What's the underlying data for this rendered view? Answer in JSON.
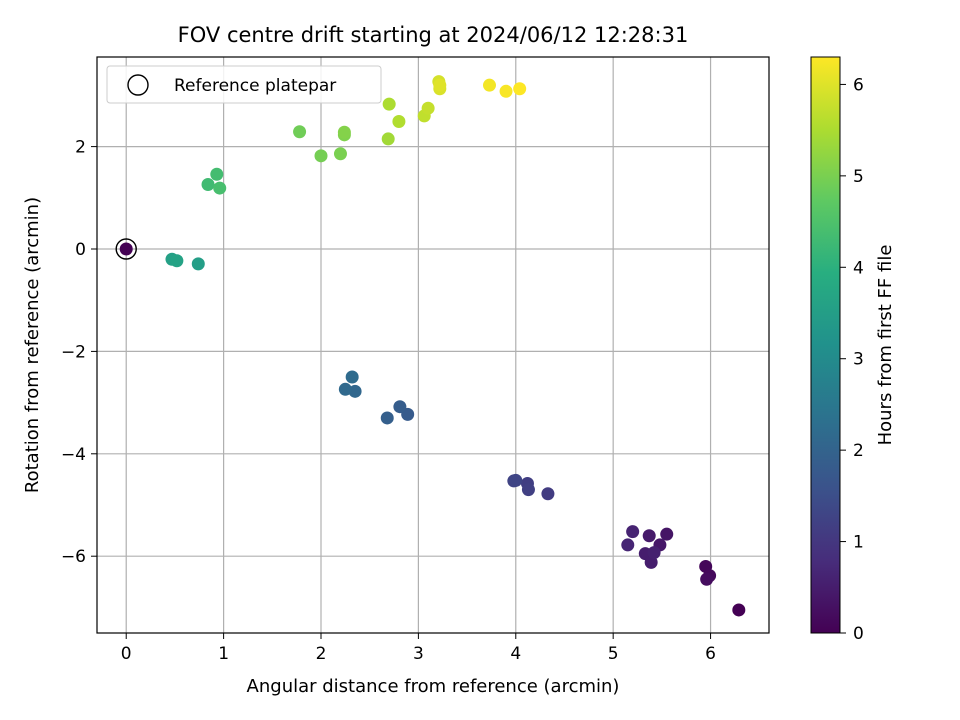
{
  "chart_data": {
    "type": "scatter",
    "title": "FOV centre drift starting at 2024/06/12 12:28:31",
    "xlabel": "Angular distance from reference (arcmin)",
    "ylabel": "Rotation from reference (arcmin)",
    "colorbar_label": "Hours from first FF file",
    "xlim": [
      -0.3,
      6.6
    ],
    "ylim": [
      -7.5,
      3.75
    ],
    "clim": [
      0,
      6.3
    ],
    "xticks": [
      0,
      1,
      2,
      3,
      4,
      5,
      6
    ],
    "yticks": [
      -6,
      -4,
      -2,
      0,
      2
    ],
    "colorbar_ticks": [
      0,
      1,
      2,
      3,
      4,
      5,
      6
    ],
    "grid": true,
    "legend": {
      "placement": "top-left",
      "entries": [
        "Reference platepar"
      ]
    },
    "reference_point": {
      "x": 0,
      "y": 0
    },
    "colormap": "viridis",
    "points": [
      {
        "x": 0.0,
        "y": 0.0,
        "t": 0.0
      },
      {
        "x": 6.29,
        "y": -7.05,
        "t": 0.0
      },
      {
        "x": 5.95,
        "y": -6.2,
        "t": 0.1
      },
      {
        "x": 5.99,
        "y": -6.38,
        "t": 0.15
      },
      {
        "x": 5.96,
        "y": -6.45,
        "t": 0.2
      },
      {
        "x": 5.55,
        "y": -5.57,
        "t": 0.35
      },
      {
        "x": 5.48,
        "y": -5.78,
        "t": 0.4
      },
      {
        "x": 5.37,
        "y": -5.6,
        "t": 0.45
      },
      {
        "x": 5.33,
        "y": -5.95,
        "t": 0.5
      },
      {
        "x": 5.39,
        "y": -6.12,
        "t": 0.5
      },
      {
        "x": 5.42,
        "y": -5.93,
        "t": 0.55
      },
      {
        "x": 5.2,
        "y": -5.52,
        "t": 0.6
      },
      {
        "x": 5.15,
        "y": -5.78,
        "t": 0.65
      },
      {
        "x": 4.33,
        "y": -4.78,
        "t": 1.1
      },
      {
        "x": 4.12,
        "y": -4.58,
        "t": 1.15
      },
      {
        "x": 4.13,
        "y": -4.7,
        "t": 1.2
      },
      {
        "x": 3.98,
        "y": -4.53,
        "t": 1.25
      },
      {
        "x": 4.0,
        "y": -4.52,
        "t": 1.3
      },
      {
        "x": 2.89,
        "y": -3.23,
        "t": 1.8
      },
      {
        "x": 2.81,
        "y": -3.08,
        "t": 1.85
      },
      {
        "x": 2.68,
        "y": -3.3,
        "t": 1.9
      },
      {
        "x": 2.35,
        "y": -2.78,
        "t": 2.1
      },
      {
        "x": 2.25,
        "y": -2.74,
        "t": 2.15
      },
      {
        "x": 2.32,
        "y": -2.5,
        "t": 2.2
      },
      {
        "x": 0.74,
        "y": -0.29,
        "t": 3.5
      },
      {
        "x": 0.47,
        "y": -0.2,
        "t": 3.55
      },
      {
        "x": 0.52,
        "y": -0.23,
        "t": 3.6
      },
      {
        "x": 0.84,
        "y": 1.26,
        "t": 4.3
      },
      {
        "x": 0.93,
        "y": 1.46,
        "t": 4.35
      },
      {
        "x": 0.96,
        "y": 1.19,
        "t": 4.4
      },
      {
        "x": 1.78,
        "y": 2.29,
        "t": 4.9
      },
      {
        "x": 2.0,
        "y": 1.82,
        "t": 4.95
      },
      {
        "x": 2.2,
        "y": 1.86,
        "t": 5.0
      },
      {
        "x": 2.24,
        "y": 2.23,
        "t": 5.05
      },
      {
        "x": 2.24,
        "y": 2.28,
        "t": 5.1
      },
      {
        "x": 2.69,
        "y": 2.15,
        "t": 5.4
      },
      {
        "x": 2.7,
        "y": 2.83,
        "t": 5.5
      },
      {
        "x": 2.8,
        "y": 2.49,
        "t": 5.55
      },
      {
        "x": 3.06,
        "y": 2.6,
        "t": 5.7
      },
      {
        "x": 3.1,
        "y": 2.75,
        "t": 5.75
      },
      {
        "x": 3.21,
        "y": 3.27,
        "t": 5.9
      },
      {
        "x": 3.22,
        "y": 3.13,
        "t": 5.95
      },
      {
        "x": 3.22,
        "y": 3.2,
        "t": 6.0
      },
      {
        "x": 3.73,
        "y": 3.2,
        "t": 6.2
      },
      {
        "x": 3.9,
        "y": 3.08,
        "t": 6.25
      },
      {
        "x": 4.04,
        "y": 3.13,
        "t": 6.3
      }
    ]
  }
}
